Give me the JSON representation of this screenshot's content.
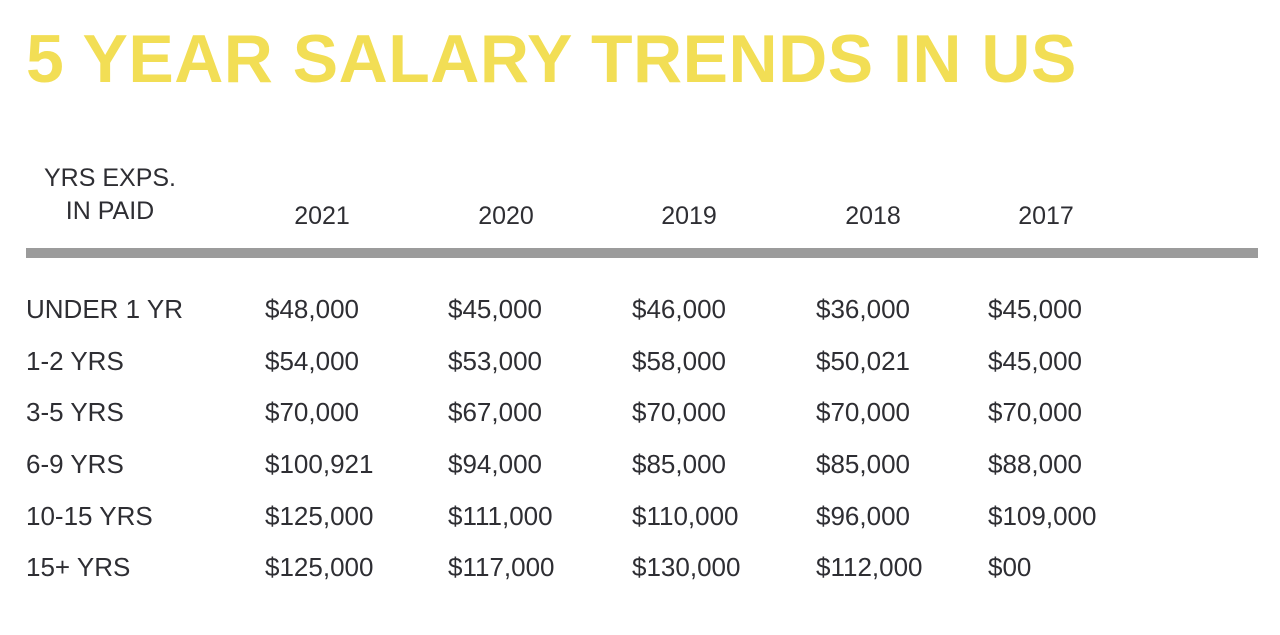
{
  "title": "5 YEAR SALARY TRENDS IN US",
  "colors": {
    "title": "#f2de55",
    "text": "#2e2e33",
    "rule": "#9b9b9b"
  },
  "table": {
    "first_header": [
      "YRS EXPS.",
      "IN PAID"
    ],
    "years": [
      "2021",
      "2020",
      "2019",
      "2018",
      "2017"
    ],
    "rows": [
      {
        "label": "UNDER 1 YR",
        "values": [
          "$48,000",
          "$45,000",
          "$46,000",
          "$36,000",
          "$45,000"
        ]
      },
      {
        "label": "1-2 YRS",
        "values": [
          "$54,000",
          "$53,000",
          "$58,000",
          "$50,021",
          "$45,000"
        ]
      },
      {
        "label": "3-5 YRS",
        "values": [
          "$70,000",
          "$67,000",
          "$70,000",
          "$70,000",
          "$70,000"
        ]
      },
      {
        "label": "6-9 YRS",
        "values": [
          "$100,921",
          "$94,000",
          "$85,000",
          "$85,000",
          "$88,000"
        ]
      },
      {
        "label": "10-15 YRS",
        "values": [
          "$125,000",
          "$111,000",
          "$110,000",
          "$96,000",
          "$109,000"
        ]
      },
      {
        "label": "15+ YRS",
        "values": [
          "$125,000",
          "$117,000",
          "$130,000",
          "$112,000",
          "$00"
        ]
      }
    ]
  }
}
